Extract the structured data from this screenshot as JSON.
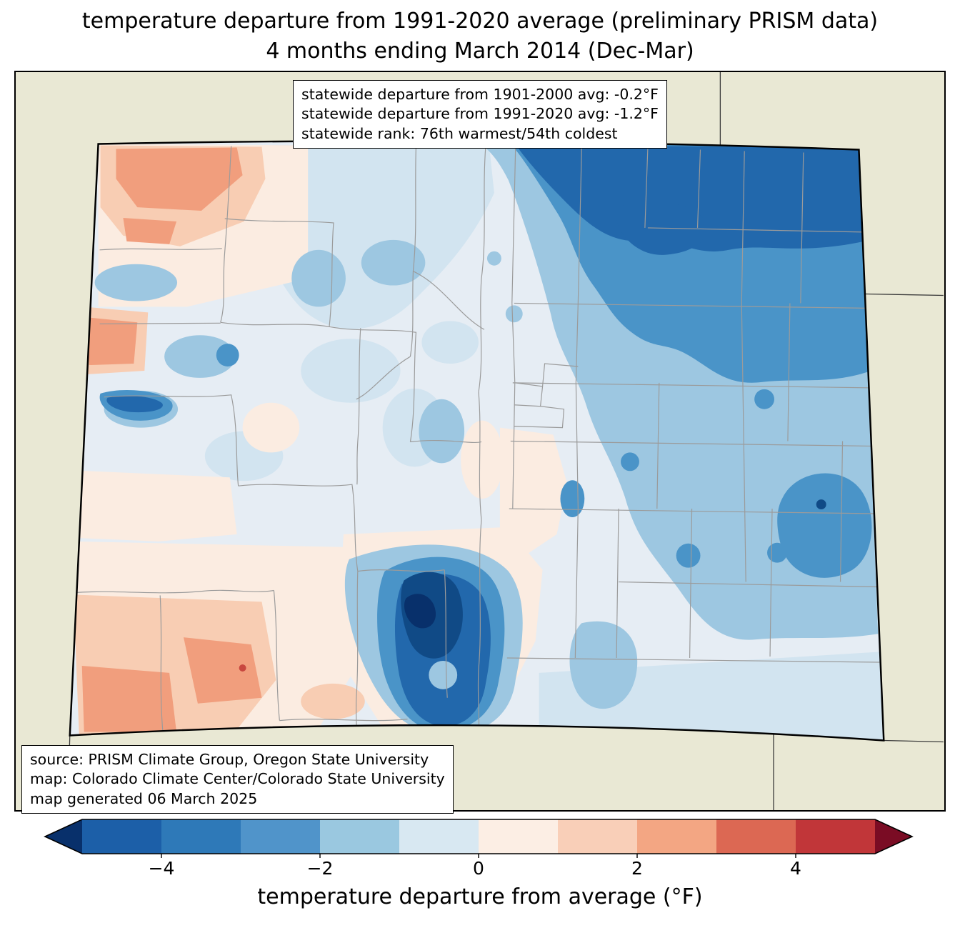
{
  "figure": {
    "title_line1": "temperature departure from 1991-2020 average (preliminary PRISM data)",
    "title_line2": "4 months ending March 2014 (Dec-Mar)"
  },
  "stats_box": {
    "line1": "statewide departure from 1901-2000 avg: -0.2°F",
    "line2": "statewide departure from 1991-2020 avg: -1.2°F",
    "line3": "statewide rank: 76th warmest/54th coldest"
  },
  "source_box": {
    "line1": "source: PRISM Climate Group, Oregon State University",
    "line2": "map: Colorado Climate Center/Colorado State University",
    "line3": "map generated 06 March 2025"
  },
  "colorbar": {
    "label": "temperature departure from average (°F)",
    "value_min": -5,
    "value_max": 5,
    "tick_values": [
      -4,
      -2,
      0,
      2,
      4
    ],
    "tick_labels": [
      "−4",
      "−2",
      "0",
      "2",
      "4"
    ],
    "segment_colors": [
      "#1c5fa8",
      "#2e79b8",
      "#5094ca",
      "#9ac8e0",
      "#d8e8f2",
      "#fceee4",
      "#f9cfb8",
      "#f3a683",
      "#dc6853",
      "#c13639"
    ],
    "left_arrow_color": "#08306b",
    "right_arrow_color": "#7a0c24"
  },
  "palette": {
    "margin_beige": "#e9e8d4",
    "state_base": "#e6edf4",
    "blue_pale": "#d2e4f0",
    "blue_light": "#9dc7e1",
    "blue_mid": "#4a94c8",
    "blue_deep": "#2268ac",
    "blue_navy": "#104a86",
    "blue_darkest": "#08306b",
    "pink_pale": "#fbece1",
    "peach": "#f8cdb3",
    "salmon": "#f19e7d",
    "red_spot": "#c8473f",
    "county_line": "#9b9b9b",
    "neighbor_line": "#3a3a3a",
    "state_border": "#000000"
  },
  "map_summary": {
    "region": "Colorado",
    "variable": "temperature departure from average (°F)",
    "statewide_departure_1901_2000_avg": "-0.2°F",
    "statewide_departure_1991_2020_avg": "-1.2°F",
    "statewide_rank": "76th warmest/54th coldest",
    "scale_range": [
      -5,
      5
    ]
  }
}
